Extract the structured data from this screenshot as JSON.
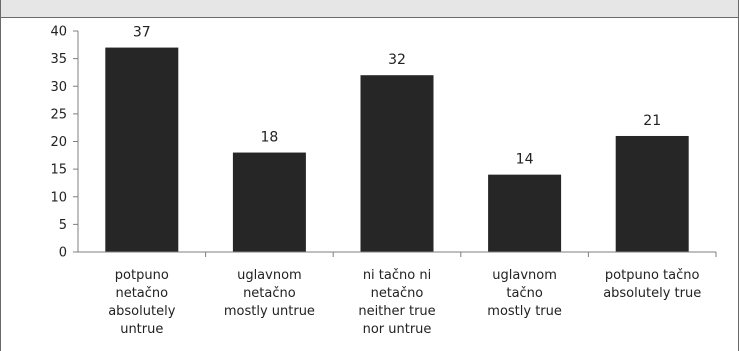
{
  "chart_data": {
    "type": "bar",
    "title": "",
    "xlabel": "",
    "ylabel": "",
    "ylim": [
      0,
      40
    ],
    "yticks": [
      0,
      5,
      10,
      15,
      20,
      25,
      30,
      35,
      40
    ],
    "grid": false,
    "categories": [
      [
        "potpuno",
        "netačno",
        "absolutely",
        "untrue"
      ],
      [
        "uglavnom",
        "netačno",
        "mostly untrue"
      ],
      [
        "ni tačno ni",
        "netačno",
        "neither true",
        "nor untrue"
      ],
      [
        "uglavnom",
        "tačno",
        "mostly true"
      ],
      [
        "potpuno tačno",
        "absolutely true"
      ]
    ],
    "values": [
      37,
      18,
      32,
      14,
      21
    ],
    "bar_color": "#262626"
  }
}
